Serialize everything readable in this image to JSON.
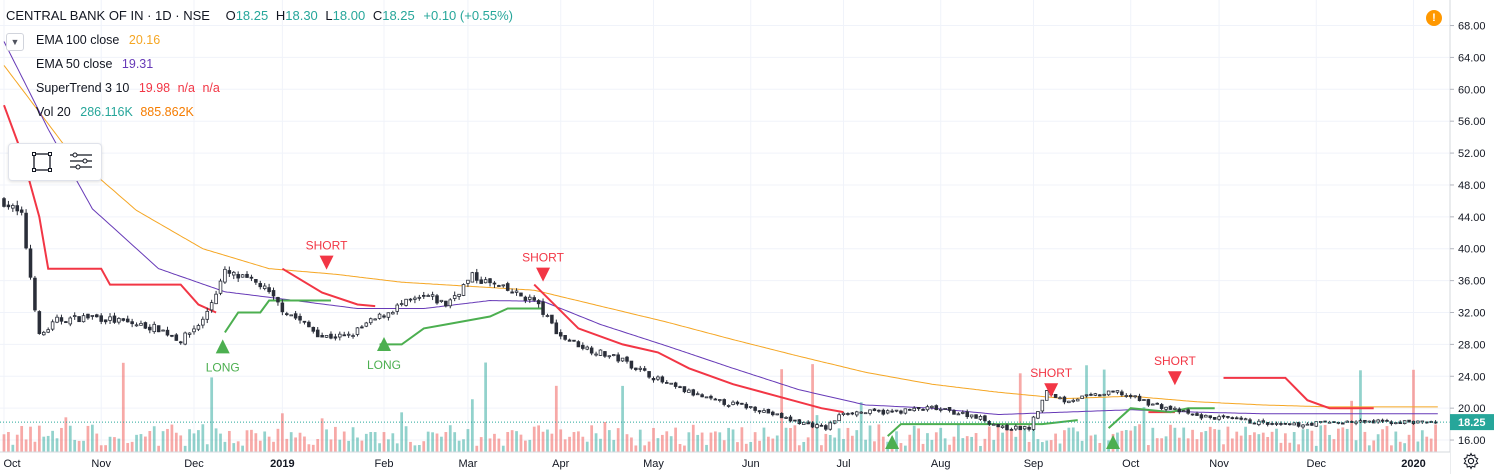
{
  "header": {
    "symbol": "CENTRAL BANK OF IN · 1D · NSE",
    "ohlc": [
      {
        "k": "O",
        "v": "18.25"
      },
      {
        "k": "H",
        "v": "18.30"
      },
      {
        "k": "L",
        "v": "18.00"
      },
      {
        "k": "C",
        "v": "18.25"
      }
    ],
    "change": "+0.10 (+0.55%)"
  },
  "indicators": [
    {
      "label": "EMA 100 close",
      "values": [
        "20.16"
      ],
      "colors": [
        "#f5a623"
      ]
    },
    {
      "label": "EMA 50 close",
      "values": [
        "19.31"
      ],
      "colors": [
        "#673ab7"
      ]
    },
    {
      "label": "SuperTrend 3 10",
      "values": [
        "19.98",
        "n/a",
        "n/a"
      ],
      "colors": [
        "#f23645",
        "#f23645",
        "#f23645"
      ]
    },
    {
      "label": "Vol 20",
      "values": [
        "286.116K",
        "885.862K"
      ],
      "colors": [
        "#26a69a",
        "#f57c00"
      ]
    }
  ],
  "icons": {
    "collapse": "chevron-down-icon",
    "tool_rect": "rectangle-select-icon",
    "tool_list": "object-tree-icon",
    "alert": "warning-icon",
    "settings": "gear-icon"
  },
  "colors": {
    "up": "#26a69a",
    "down": "#ef5350",
    "ema100": "#f5a623",
    "ema50": "#673ab7",
    "st_down": "#f23645",
    "st_up": "#4caf50",
    "last_price_label": "#26a69a",
    "grid": "#f0f3fa"
  },
  "chart_data": {
    "type": "candlestick",
    "y_axis": {
      "min": 14.5,
      "max": 70.2,
      "ticks": [
        16,
        20,
        24,
        28,
        32,
        36,
        40,
        44,
        48,
        52,
        56,
        60,
        64,
        68
      ],
      "tick_labels": [
        "16.00",
        "20.00",
        "24.00",
        "28.00",
        "32.00",
        "36.00",
        "40.00",
        "44.00",
        "48.00",
        "52.00",
        "56.00",
        "60.00",
        "64.00",
        "68.00"
      ]
    },
    "x_axis": {
      "labels": [
        "Oct",
        "Nov",
        "Dec",
        "2019",
        "Feb",
        "Mar",
        "Apr",
        "May",
        "Jun",
        "Jul",
        "Aug",
        "Sep",
        "Oct",
        "Nov",
        "Dec",
        "2020"
      ],
      "label_positions_day": [
        0,
        22,
        43,
        63,
        86,
        105,
        126,
        147,
        169,
        190,
        212,
        233,
        255,
        275,
        297,
        319
      ],
      "bold": [
        "2019",
        "2020"
      ]
    },
    "days": 325,
    "close_keypoints": [
      [
        0,
        46
      ],
      [
        4,
        44
      ],
      [
        8,
        29
      ],
      [
        12,
        31
      ],
      [
        20,
        31.5
      ],
      [
        35,
        30
      ],
      [
        40,
        28.5
      ],
      [
        45,
        31
      ],
      [
        50,
        37
      ],
      [
        58,
        35.5
      ],
      [
        63,
        32.5
      ],
      [
        72,
        29
      ],
      [
        78,
        29
      ],
      [
        82,
        30.5
      ],
      [
        90,
        33
      ],
      [
        96,
        34
      ],
      [
        100,
        33
      ],
      [
        106,
        36.5
      ],
      [
        115,
        34.5
      ],
      [
        120,
        33.5
      ],
      [
        126,
        29
      ],
      [
        132,
        27.5
      ],
      [
        140,
        26
      ],
      [
        150,
        23
      ],
      [
        160,
        21
      ],
      [
        170,
        20
      ],
      [
        178,
        18.5
      ],
      [
        186,
        17.5
      ],
      [
        190,
        19.5
      ],
      [
        200,
        19.5
      ],
      [
        210,
        20
      ],
      [
        220,
        19
      ],
      [
        226,
        17.5
      ],
      [
        232,
        17.5
      ],
      [
        236,
        22
      ],
      [
        240,
        21
      ],
      [
        246,
        21.5
      ],
      [
        252,
        22
      ],
      [
        260,
        20.5
      ],
      [
        270,
        19
      ],
      [
        280,
        18.5
      ],
      [
        286,
        18
      ],
      [
        290,
        17.8
      ],
      [
        300,
        18.25
      ],
      [
        325,
        18.25
      ]
    ],
    "ema100_keypoints": [
      [
        0,
        63
      ],
      [
        15,
        52
      ],
      [
        30,
        44.8
      ],
      [
        45,
        40
      ],
      [
        60,
        37.5
      ],
      [
        75,
        36.8
      ],
      [
        90,
        35.8
      ],
      [
        105,
        35.3
      ],
      [
        120,
        34.8
      ],
      [
        135,
        32.8
      ],
      [
        150,
        30.8
      ],
      [
        165,
        28.6
      ],
      [
        180,
        26.5
      ],
      [
        195,
        24.5
      ],
      [
        210,
        23
      ],
      [
        225,
        22
      ],
      [
        240,
        21.2
      ],
      [
        255,
        21.5
      ],
      [
        270,
        20.8
      ],
      [
        285,
        20.4
      ],
      [
        300,
        20.16
      ],
      [
        325,
        20.16
      ]
    ],
    "ema50_keypoints": [
      [
        0,
        66
      ],
      [
        10,
        55
      ],
      [
        20,
        45
      ],
      [
        35,
        37.5
      ],
      [
        50,
        34.6
      ],
      [
        63,
        33.7
      ],
      [
        80,
        32.5
      ],
      [
        95,
        32.5
      ],
      [
        110,
        33.5
      ],
      [
        122,
        33.4
      ],
      [
        135,
        30.5
      ],
      [
        150,
        27.8
      ],
      [
        165,
        25
      ],
      [
        180,
        22.3
      ],
      [
        195,
        20.4
      ],
      [
        210,
        20
      ],
      [
        225,
        19.2
      ],
      [
        240,
        19.5
      ],
      [
        255,
        19.8
      ],
      [
        270,
        19.5
      ],
      [
        285,
        19.3
      ],
      [
        300,
        19.31
      ],
      [
        325,
        19.31
      ]
    ],
    "supertrend": {
      "down_segments": [
        [
          [
            0,
            58
          ],
          [
            4,
            52
          ],
          [
            8,
            44
          ],
          [
            10,
            37.5
          ],
          [
            22,
            37.5
          ],
          [
            24,
            35.5
          ],
          [
            40,
            35.5
          ],
          [
            44,
            33
          ],
          [
            48,
            32
          ]
        ],
        [
          [
            63,
            37.5
          ],
          [
            72,
            34.5
          ],
          [
            80,
            33
          ],
          [
            84,
            32.8
          ]
        ],
        [
          [
            120,
            35.5
          ],
          [
            130,
            30
          ],
          [
            140,
            28
          ],
          [
            148,
            27
          ],
          [
            155,
            25
          ],
          [
            165,
            23
          ],
          [
            175,
            21.5
          ],
          [
            185,
            20
          ],
          [
            190,
            19.5
          ]
        ],
        [
          [
            259,
            19.5
          ],
          [
            265,
            19.5
          ]
        ],
        [
          [
            276,
            23.8
          ],
          [
            290,
            23.8
          ],
          [
            295,
            21
          ],
          [
            300,
            20
          ],
          [
            310,
            20
          ]
        ]
      ],
      "up_segments": [
        [
          [
            50,
            29.5
          ],
          [
            53,
            32
          ],
          [
            58,
            32
          ],
          [
            60,
            33.5
          ],
          [
            74,
            33.5
          ]
        ],
        [
          [
            85,
            28
          ],
          [
            90,
            28
          ],
          [
            95,
            30
          ],
          [
            100,
            30.5
          ],
          [
            110,
            31.5
          ],
          [
            114,
            32.5
          ],
          [
            122,
            32.5
          ]
        ],
        [
          [
            200,
            16.5
          ],
          [
            203,
            18
          ],
          [
            220,
            18
          ],
          [
            235,
            18
          ],
          [
            243,
            18.5
          ]
        ],
        [
          [
            250,
            17.5
          ],
          [
            255,
            20
          ],
          [
            264,
            19.5
          ],
          [
            268,
            20
          ],
          [
            274,
            20
          ]
        ]
      ]
    },
    "signals": [
      {
        "type": "LONG",
        "day": 49.5,
        "price": 28.5
      },
      {
        "type": "SHORT",
        "day": 73,
        "price": 37.5
      },
      {
        "type": "LONG",
        "day": 86,
        "price": 28.8
      },
      {
        "type": "SHORT",
        "day": 122,
        "price": 36
      },
      {
        "type": "LONG",
        "day": 201,
        "price": 16.5
      },
      {
        "type": "SHORT",
        "day": 237,
        "price": 21.5
      },
      {
        "type": "LONG",
        "day": 251,
        "price": 16.5
      },
      {
        "type": "SHORT",
        "day": 265,
        "price": 23
      }
    ],
    "signal_labels": {
      "long": "LONG",
      "short": "SHORT"
    },
    "last_price": 18.25,
    "last_price_label": "18.25"
  }
}
